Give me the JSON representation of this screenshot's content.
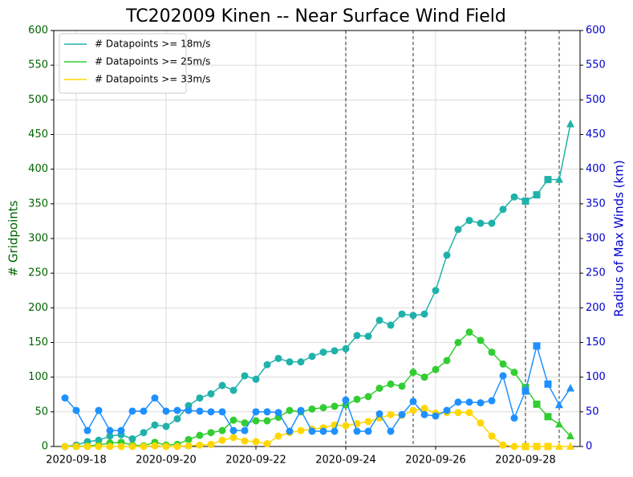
{
  "chart_data": {
    "type": "line",
    "title": "TC202009 Kinen -- Near Surface Wind Field",
    "ylabel": "# Gridpoints",
    "y2label": "Radius of Max Winds (km)",
    "categories": [
      null,
      "2020-09-18",
      null,
      null,
      null,
      null,
      null,
      null,
      null,
      "2020-09-20",
      null,
      null,
      null,
      null,
      null,
      null,
      null,
      "2020-09-22",
      null,
      null,
      null,
      null,
      null,
      null,
      null,
      "2020-09-24",
      null,
      null,
      null,
      null,
      null,
      null,
      null,
      "2020-09-26",
      null,
      null,
      null,
      null,
      null,
      null,
      null,
      "2020-09-28",
      null,
      null,
      null,
      null
    ],
    "series": [
      {
        "name": "# Datapoints >= 18m/s",
        "color": "#20b2aa",
        "values": [
          0,
          2,
          7,
          9,
          15,
          17,
          11,
          20,
          31,
          29,
          40,
          59,
          70,
          76,
          88,
          81,
          102,
          97,
          118,
          127,
          122,
          122,
          130,
          136,
          138,
          141,
          160,
          159,
          182,
          175,
          191,
          189,
          191,
          225,
          276,
          313,
          326,
          322,
          322,
          342,
          360,
          354,
          363,
          385,
          385,
          465
        ]
      },
      {
        "name": "# Datapoints >= 25m/s",
        "color": "#32cd32",
        "values": [
          0,
          0,
          1,
          2,
          5,
          6,
          2,
          1,
          6,
          2,
          3,
          10,
          16,
          20,
          23,
          38,
          34,
          37,
          37,
          42,
          52,
          50,
          54,
          56,
          58,
          60,
          68,
          72,
          84,
          90,
          87,
          107,
          100,
          111,
          124,
          150,
          165,
          153,
          136,
          119,
          107,
          85,
          61,
          43,
          32,
          15
        ]
      },
      {
        "name": "# Datapoints >= 33m/s",
        "color": "#ffd700",
        "values": [
          0,
          0,
          0,
          0,
          0,
          0,
          0,
          0,
          1,
          0,
          0,
          1,
          2,
          3,
          9,
          13,
          8,
          7,
          4,
          15,
          20,
          23,
          25,
          27,
          31,
          30,
          33,
          36,
          41,
          46,
          45,
          52,
          55,
          48,
          49,
          49,
          49,
          34,
          15,
          2,
          0,
          0,
          0,
          0,
          0,
          0
        ]
      },
      {
        "color": "#1e90ff",
        "axis": "y2",
        "values": [
          70,
          52,
          23,
          52,
          23,
          23,
          51,
          51,
          70,
          51,
          52,
          52,
          51,
          50,
          50,
          23,
          23,
          50,
          50,
          49,
          22,
          52,
          22,
          22,
          22,
          67,
          22,
          22,
          47,
          22,
          46,
          65,
          46,
          44,
          52,
          64,
          64,
          63,
          66,
          102,
          41,
          80,
          145,
          90,
          60,
          84
        ]
      }
    ],
    "ylim": [
      0,
      600
    ],
    "yticks": [
      0,
      50,
      100,
      150,
      200,
      250,
      300,
      350,
      400,
      450,
      500,
      550,
      600
    ],
    "y2lim": [
      0,
      600
    ],
    "y2ticks": [
      0,
      50,
      100,
      150,
      200,
      250,
      300,
      350,
      400,
      450,
      500,
      550,
      600
    ],
    "vlines": [
      25,
      31,
      41,
      44
    ],
    "marker_shapes": [
      "circle",
      "circle",
      "circle",
      "square",
      "triangle"
    ],
    "grid": true,
    "legend": "upper left",
    "ycolor": "#006400",
    "y2color": "#0000cd"
  }
}
